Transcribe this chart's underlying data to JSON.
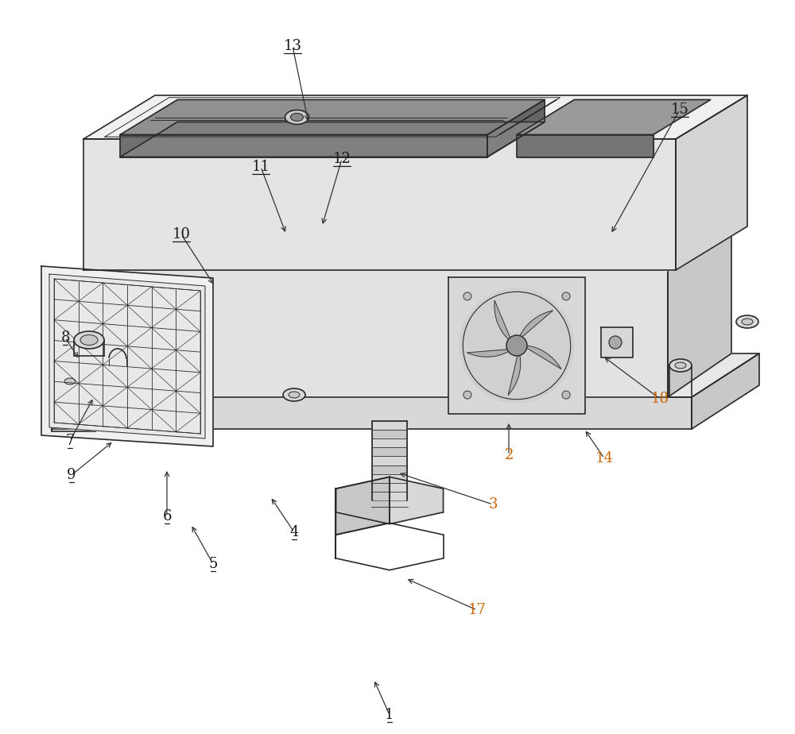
{
  "fig_width": 10.0,
  "fig_height": 9.24,
  "bg_color": "#ffffff",
  "lc": "#2a2a2a",
  "lw": 1.2,
  "lwt": 0.7,
  "gray1": "#e8e8e8",
  "gray2": "#d8d8d8",
  "gray3": "#c8c8c8",
  "gray4": "#b8b8b8",
  "gray5": "#f2f2f2",
  "gray6": "#eeeeee",
  "labels_black": [
    "1",
    "4",
    "5",
    "6",
    "7",
    "8",
    "9",
    "10",
    "11",
    "12",
    "13",
    "15"
  ],
  "labels_orange": [
    "2",
    "3",
    "14",
    "17",
    "18"
  ],
  "orange": "#cc6600",
  "font_size": 13
}
